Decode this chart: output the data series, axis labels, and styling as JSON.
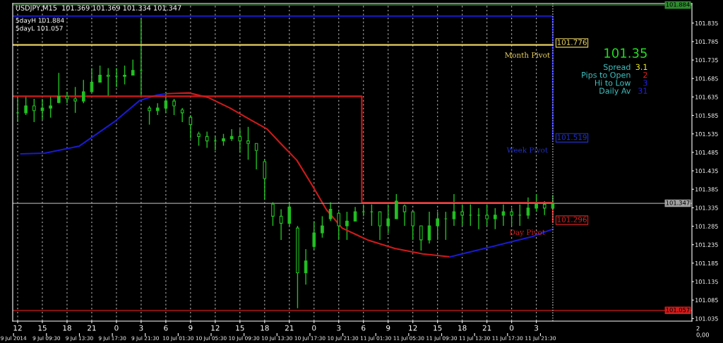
{
  "chart_data": {
    "type": "candlestick",
    "title": "USDJPY,M15  101.369 101.369 101.334 101.347",
    "color": "#22c022",
    "x": [
      "2014-07-09T12:00",
      "2014-07-09T13:00",
      "2014-07-09T14:00",
      "2014-07-09T15:00",
      "2014-07-09T16:00",
      "2014-07-09T17:00",
      "2014-07-09T18:00",
      "2014-07-09T19:00",
      "2014-07-09T20:00",
      "2014-07-09T21:00",
      "2014-07-09T22:00",
      "2014-07-09T23:00",
      "2014-07-10T00:00",
      "2014-07-10T01:00",
      "2014-07-10T02:00",
      "2014-07-10T03:00",
      "2014-07-10T04:00",
      "2014-07-10T05:00",
      "2014-07-10T06:00",
      "2014-07-10T07:00",
      "2014-07-10T08:00",
      "2014-07-10T09:00",
      "2014-07-10T10:00",
      "2014-07-10T11:00",
      "2014-07-10T12:00",
      "2014-07-10T13:00",
      "2014-07-10T14:00",
      "2014-07-10T15:00",
      "2014-07-10T16:00",
      "2014-07-10T17:00",
      "2014-07-10T18:00",
      "2014-07-10T19:00",
      "2014-07-10T20:00",
      "2014-07-10T21:00",
      "2014-07-10T22:00",
      "2014-07-10T23:00",
      "2014-07-11T00:00",
      "2014-07-11T01:00",
      "2014-07-11T02:00",
      "2014-07-11T03:00",
      "2014-07-11T04:00",
      "2014-07-11T05:00",
      "2014-07-11T06:00",
      "2014-07-11T07:00",
      "2014-07-11T08:00",
      "2014-07-11T09:00",
      "2014-07-11T10:00",
      "2014-07-11T11:00",
      "2014-07-11T12:00",
      "2014-07-11T13:00",
      "2014-07-11T14:00",
      "2014-07-11T15:00",
      "2014-07-11T16:00",
      "2014-07-11T17:00",
      "2014-07-11T18:00",
      "2014-07-11T19:00",
      "2014-07-11T20:00",
      "2014-07-11T21:00",
      "2014-07-11T22:00",
      "2014-07-11T23:00",
      "2014-07-12T00:00",
      "2014-07-12T01:00",
      "2014-07-12T02:00",
      "2014-07-12T03:00",
      "2014-07-12T04:00",
      "2014-07-12T05:00"
    ],
    "ohlc": [
      [
        101.592,
        101.637,
        101.567,
        101.592
      ],
      [
        101.592,
        101.637,
        101.586,
        101.611
      ],
      [
        101.611,
        101.63,
        101.567,
        101.598
      ],
      [
        101.598,
        101.63,
        101.573,
        101.605
      ],
      [
        101.605,
        101.637,
        101.579,
        101.611
      ],
      [
        101.62,
        101.7,
        101.618,
        101.637
      ],
      [
        101.637,
        101.649,
        101.618,
        101.63
      ],
      [
        101.63,
        101.662,
        101.592,
        101.624
      ],
      [
        101.624,
        101.681,
        101.618,
        101.649
      ],
      [
        101.649,
        101.713,
        101.649,
        101.675
      ],
      [
        101.675,
        101.72,
        101.675,
        101.694
      ],
      [
        101.694,
        101.713,
        101.637,
        101.691
      ],
      [
        101.691,
        101.713,
        101.662,
        101.691
      ],
      [
        101.691,
        101.72,
        101.669,
        101.694
      ],
      [
        101.694,
        101.736,
        101.694,
        101.707
      ],
      [
        101.707,
        101.847,
        101.637,
        101.707
      ],
      [
        101.605,
        101.611,
        101.56,
        101.598
      ],
      [
        101.598,
        101.618,
        101.586,
        101.605
      ],
      [
        101.605,
        101.649,
        101.592,
        101.624
      ],
      [
        101.624,
        101.63,
        101.586,
        101.611
      ],
      [
        101.6,
        101.605,
        101.567,
        101.592
      ],
      [
        101.58,
        101.586,
        101.522,
        101.56
      ],
      [
        101.535,
        101.541,
        101.503,
        101.528
      ],
      [
        101.528,
        101.541,
        101.497,
        101.516
      ],
      [
        101.516,
        101.528,
        101.49,
        101.516
      ],
      [
        101.516,
        101.535,
        101.503,
        101.522
      ],
      [
        101.522,
        101.548,
        101.516,
        101.528
      ],
      [
        101.528,
        101.548,
        101.484,
        101.516
      ],
      [
        101.516,
        101.554,
        101.465,
        101.509
      ],
      [
        101.509,
        101.509,
        101.439,
        101.49
      ],
      [
        101.46,
        101.465,
        101.356,
        101.414
      ],
      [
        101.345,
        101.35,
        101.286,
        101.312
      ],
      [
        101.312,
        101.331,
        101.248,
        101.293
      ],
      [
        101.293,
        101.35,
        101.286,
        101.337
      ],
      [
        101.28,
        101.286,
        101.063,
        101.159
      ],
      [
        101.159,
        101.223,
        101.127,
        101.191
      ],
      [
        101.23,
        101.299,
        101.223,
        101.267
      ],
      [
        101.267,
        101.312,
        101.254,
        101.286
      ],
      [
        101.305,
        101.35,
        101.299,
        101.331
      ],
      [
        101.32,
        101.324,
        101.248,
        101.286
      ],
      [
        101.286,
        101.324,
        101.248,
        101.299
      ],
      [
        101.299,
        101.337,
        101.299,
        101.324
      ],
      [
        101.324,
        101.344,
        101.312,
        101.324
      ],
      [
        101.324,
        101.344,
        101.286,
        101.324
      ],
      [
        101.324,
        101.324,
        101.248,
        101.286
      ],
      [
        101.286,
        101.344,
        101.267,
        101.305
      ],
      [
        101.305,
        101.372,
        101.305,
        101.353
      ],
      [
        101.34,
        101.344,
        101.286,
        101.324
      ],
      [
        101.324,
        101.324,
        101.248,
        101.286
      ],
      [
        101.286,
        101.286,
        101.219,
        101.248
      ],
      [
        101.248,
        101.324,
        101.238,
        101.286
      ],
      [
        101.286,
        101.324,
        101.248,
        101.305
      ],
      [
        101.305,
        101.324,
        101.248,
        101.305
      ],
      [
        101.305,
        101.372,
        101.286,
        101.324
      ],
      [
        101.324,
        101.344,
        101.286,
        101.315
      ],
      [
        101.315,
        101.344,
        101.286,
        101.315
      ],
      [
        101.315,
        101.334,
        101.277,
        101.315
      ],
      [
        101.315,
        101.344,
        101.286,
        101.305
      ],
      [
        101.305,
        101.334,
        101.277,
        101.315
      ],
      [
        101.315,
        101.344,
        101.286,
        101.324
      ],
      [
        101.324,
        101.334,
        101.286,
        101.315
      ],
      [
        101.315,
        101.344,
        101.286,
        101.315
      ],
      [
        101.315,
        101.363,
        101.305,
        101.334
      ],
      [
        101.334,
        101.372,
        101.324,
        101.344
      ],
      [
        101.344,
        101.353,
        101.315,
        101.334
      ],
      [
        101.334,
        101.369,
        101.334,
        101.347
      ]
    ],
    "series": [
      {
        "type": "line",
        "color": "#1a1ad0",
        "x": [
          "2014-07-09T12:24",
          "2014-07-09T15:18",
          "2014-07-09T19:30",
          "2014-07-09T23:42",
          "2014-07-10T02:48",
          "2014-07-10T04:54",
          "2014-07-10T06:06"
        ],
        "values": [
          101.481,
          101.483,
          101.502,
          101.567,
          101.625,
          101.64,
          101.644
        ]
      },
      {
        "type": "line",
        "color": "#d01a1a",
        "x": [
          "2014-07-10T06:06",
          "2014-07-10T08:48",
          "2014-07-10T11:06",
          "2014-07-10T13:48",
          "2014-07-10T16:18",
          "2014-07-10T18:18",
          "2014-07-10T19:54",
          "2014-07-10T21:54",
          "2014-07-10T23:48",
          "2014-07-11T01:30",
          "2014-07-11T03:24",
          "2014-07-11T06:30",
          "2014-07-11T09:48",
          "2014-07-11T13:12",
          "2014-07-11T16:30"
        ],
        "values": [
          101.644,
          101.646,
          101.634,
          101.605,
          101.573,
          101.548,
          101.51,
          101.464,
          101.395,
          101.33,
          101.28,
          101.248,
          101.225,
          101.21,
          101.202
        ]
      },
      {
        "type": "line",
        "color": "#1a1ad0",
        "x": [
          "2014-07-11T16:30",
          "2014-07-11T21:30",
          "2014-07-12T02:30",
          "2014-07-12T05:00"
        ],
        "values": [
          101.202,
          101.229,
          101.257,
          101.277
        ]
      },
      {
        "type": "line",
        "color": "#1a1ad0",
        "x": [
          "2014-07-09T11:24",
          "2014-07-12T05:00",
          "2014-07-12T05:00"
        ],
        "values": [
          101.854,
          101.854,
          101.519
        ]
      },
      {
        "type": "line",
        "color": "#e8d060",
        "x": [
          "2014-07-09T11:24",
          "2014-07-12T05:00"
        ],
        "values": [
          101.776,
          101.776
        ]
      },
      {
        "type": "line",
        "color": "#d01a1a",
        "x": [
          "2014-07-09T11:24",
          "2014-07-11T05:48",
          "2014-07-11T05:48",
          "2014-07-12T05:00",
          "2014-07-12T05:00"
        ],
        "values": [
          101.637,
          101.637,
          101.349,
          101.349,
          101.296
        ]
      }
    ],
    "ref_lines": [
      {
        "axis": "y",
        "value": 101.884,
        "label": "101.884",
        "color": "#2e8b2e"
      },
      {
        "axis": "y",
        "value": 101.347,
        "label": "101.347",
        "color": "#a0a0a0"
      },
      {
        "axis": "y",
        "value": 101.057,
        "label": "101.057",
        "color": "#d01a1a"
      },
      {
        "axis": "x",
        "value": "2014-07-12T05:00",
        "color": "#c0c0c0",
        "line_style": "dotted"
      }
    ],
    "annotations": [
      {
        "text": "Month Pivot",
        "x": "2014-07-12T05:00",
        "y": 101.776
      },
      {
        "text": "101.776",
        "x": "2014-07-12T05:00",
        "y": 101.776
      },
      {
        "text": "Week Pivot",
        "x": "2014-07-12T05:00",
        "y": 101.519
      },
      {
        "text": "101.519",
        "x": "2014-07-12T05:00",
        "y": 101.519
      },
      {
        "text": "Day Pivot",
        "x": "2014-07-12T05:00",
        "y": 101.296
      },
      {
        "text": "101.296",
        "x": "2014-07-12T05:00",
        "y": 101.296
      },
      "5dayH 101.884",
      "5dayL 101.057",
      "101.35",
      "Spread",
      "3.1",
      "Pips to Open",
      "2",
      "Hi to Low",
      "3",
      "Daily Av",
      "31",
      "2",
      "0,00"
    ],
    "xlim": [
      "2014-07-09T11:24",
      "2014-07-12T21:54"
    ],
    "ylim": [
      101.028,
      101.888
    ],
    "xticks": [
      {
        "value": "2014-07-09T12:00",
        "label": "12"
      },
      {
        "value": "2014-07-09T15:00",
        "label": "15"
      },
      {
        "value": "2014-07-09T18:00",
        "label": "18"
      },
      {
        "value": "2014-07-09T21:00",
        "label": "21"
      },
      {
        "value": "2014-07-10T00:00",
        "label": "0"
      },
      {
        "value": "2014-07-10T03:00",
        "label": "3"
      },
      {
        "value": "2014-07-10T06:00",
        "label": "6"
      },
      {
        "value": "2014-07-10T09:00",
        "label": "9"
      },
      {
        "value": "2014-07-10T12:00",
        "label": "12"
      },
      {
        "value": "2014-07-10T15:00",
        "label": "15"
      },
      {
        "value": "2014-07-10T18:00",
        "label": "18"
      },
      {
        "value": "2014-07-10T21:00",
        "label": "21"
      },
      {
        "value": "2014-07-11T00:00",
        "label": "0"
      },
      {
        "value": "2014-07-11T03:00",
        "label": "3"
      },
      {
        "value": "2014-07-11T06:00",
        "label": "6"
      },
      {
        "value": "2014-07-11T09:00",
        "label": "9"
      },
      {
        "value": "2014-07-11T12:00",
        "label": "12"
      },
      {
        "value": "2014-07-11T15:00",
        "label": "15"
      },
      {
        "value": "2014-07-11T18:00",
        "label": "18"
      },
      {
        "value": "2014-07-11T21:00",
        "label": "21"
      },
      {
        "value": "2014-07-12T00:00",
        "label": "0"
      },
      {
        "value": "2014-07-12T03:00",
        "label": "3"
      }
    ],
    "x2lim": [
      "2014-07-09T05:24",
      "2014-07-12T15:54"
    ],
    "x2ticks": [
      {
        "value": "2014-07-09T05:30",
        "label": "9 Jul 2014"
      },
      {
        "value": "2014-07-09T09:30",
        "label": "9 Jul 09:30"
      },
      {
        "value": "2014-07-09T13:30",
        "label": "9 Jul 13:30"
      },
      {
        "value": "2014-07-09T17:30",
        "label": "9 Jul 17:30"
      },
      {
        "value": "2014-07-09T21:30",
        "label": "9 Jul 21:30"
      },
      {
        "value": "2014-07-10T01:30",
        "label": "10 Jul 01:30"
      },
      {
        "value": "2014-07-10T05:30",
        "label": "10 Jul 05:30"
      },
      {
        "value": "2014-07-10T09:30",
        "label": "10 Jul 09:30"
      },
      {
        "value": "2014-07-10T13:30",
        "label": "10 Jul 13:30"
      },
      {
        "value": "2014-07-10T17:30",
        "label": "10 Jul 17:30"
      },
      {
        "value": "2014-07-10T21:30",
        "label": "10 Jul 21:30"
      },
      {
        "value": "2014-07-11T01:30",
        "label": "11 Jul 01:30"
      },
      {
        "value": "2014-07-11T05:30",
        "label": "11 Jul 05:30"
      },
      {
        "value": "2014-07-11T09:30",
        "label": "11 Jul 09:30"
      },
      {
        "value": "2014-07-11T13:30",
        "label": "11 Jul 13:30"
      },
      {
        "value": "2014-07-11T17:30",
        "label": "11 Jul 17:30"
      },
      {
        "value": "2014-07-11T21:30",
        "label": "11 Jul 21:30"
      }
    ],
    "yticks": [
      101.035,
      101.085,
      101.135,
      101.185,
      101.235,
      101.285,
      101.335,
      101.385,
      101.435,
      101.485,
      101.535,
      101.585,
      101.635,
      101.685,
      101.735,
      101.785,
      101.835
    ],
    "grid": "x"
  }
}
